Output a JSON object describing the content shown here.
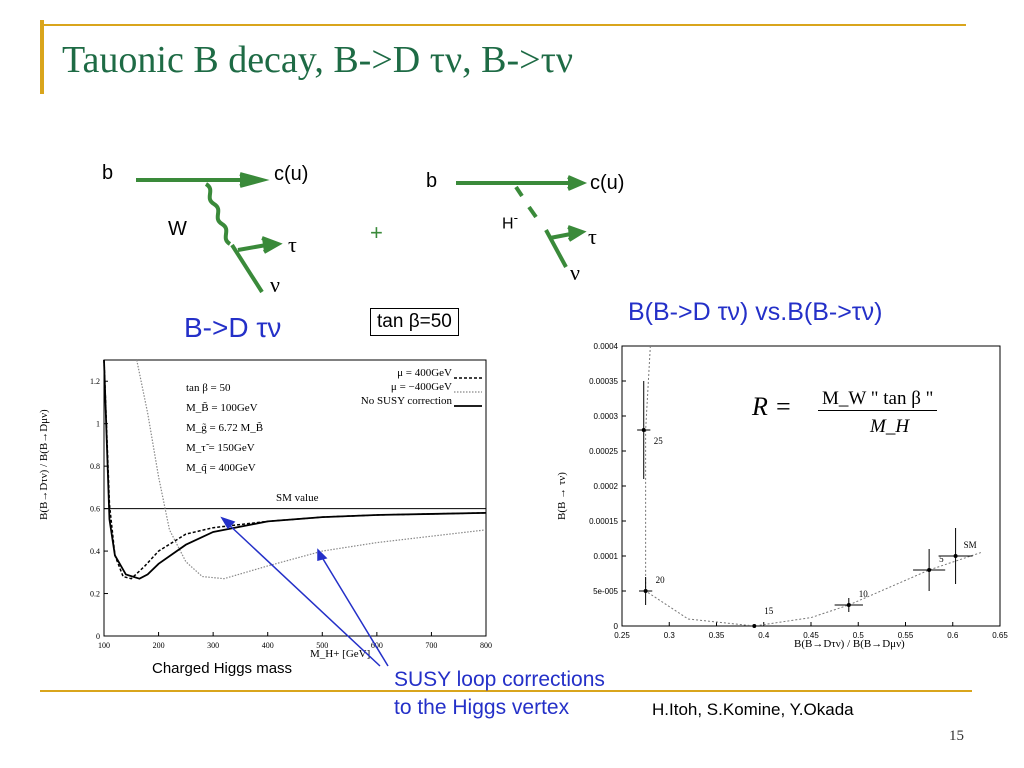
{
  "title": "Tauonic B decay, B->D τν, B->τν",
  "diagram_left": {
    "b": "b",
    "c": "c(u)",
    "w": "W",
    "tau": "τ",
    "nu": "ν"
  },
  "plus": "+",
  "diagram_right": {
    "b": "b",
    "c": "c(u)",
    "h": "H",
    "h_sup": "-",
    "tau": "τ",
    "nu": "ν"
  },
  "left_heading": "B->D τν",
  "tan_box": "tan β=50",
  "right_heading": "B(B->D τν)  vs.B(B->τν)",
  "formula": {
    "lhs": "R =",
    "num": "M_W  \" tan β \"",
    "den": "M_H"
  },
  "left_chart": {
    "params": [
      "tan β = 50",
      "M_B̃ = 100GeV",
      "M_g̃ = 6.72 M_B̃",
      "M_τ̃ = 150GeV",
      "M_q̃ = 400GeV"
    ],
    "legend": [
      "μ = 400GeV",
      "μ = −400GeV",
      "No SUSY correction"
    ],
    "sm_label": "SM value",
    "ylabel": "B(B→Dτν) / B(B→Dμν)",
    "xlabel": "M_H+ [GeV]",
    "xticks": [
      "100",
      "200",
      "300",
      "400",
      "500",
      "600",
      "700",
      "800"
    ],
    "yticks": [
      "0",
      "0.2",
      "0.4",
      "0.6",
      "0.8",
      "1",
      "1.2"
    ]
  },
  "right_chart": {
    "ylabel": "B(B → τν)",
    "xlabel": "B(B→Dτν) / B(B→Dμν)",
    "xticks": [
      "0.25",
      "0.3",
      "0.35",
      "0.4",
      "0.45",
      "0.5",
      "0.55",
      "0.6",
      "0.65"
    ],
    "yticks": [
      "0",
      "5e-005",
      "0.0001",
      "0.00015",
      "0.0002",
      "0.00025",
      "0.0003",
      "0.00035",
      "0.0004"
    ],
    "points": [
      "25",
      "20",
      "15",
      "10",
      "5",
      "SM"
    ]
  },
  "caption_left": "Charged Higgs mass",
  "caption_susy_1": "SUSY loop corrections",
  "caption_susy_2": "to the Higgs vertex",
  "authors": "H.Itoh, S.Komine, Y.Okada",
  "page_number": "15",
  "colors": {
    "title": "#1e6b45",
    "rule": "#d9a51c",
    "accent_blue": "#2430c8",
    "line_green": "#3a8a3a"
  },
  "chart_data": [
    {
      "type": "line",
      "xlabel": "M_H+ [GeV]",
      "ylabel": "B(B→Dτν)/B(B→Dμν)",
      "xlim": [
        100,
        800
      ],
      "ylim": [
        0,
        1.3
      ],
      "series": [
        {
          "name": "μ = 400GeV",
          "x": [
            100,
            110,
            120,
            135,
            150,
            175,
            200,
            250,
            300,
            400,
            500,
            600,
            700,
            800
          ],
          "values": [
            1.3,
            0.62,
            0.38,
            0.28,
            0.27,
            0.33,
            0.4,
            0.48,
            0.51,
            0.54,
            0.56,
            0.57,
            0.575,
            0.58
          ]
        },
        {
          "name": "μ = −400GeV",
          "x": [
            160,
            180,
            200,
            220,
            250,
            280,
            320,
            400,
            500,
            600,
            700,
            800
          ],
          "values": [
            1.3,
            1.05,
            0.75,
            0.5,
            0.35,
            0.28,
            0.27,
            0.33,
            0.4,
            0.44,
            0.47,
            0.5
          ]
        },
        {
          "name": "No SUSY correction",
          "x": [
            100,
            110,
            120,
            140,
            165,
            180,
            200,
            250,
            300,
            400,
            500,
            600,
            700,
            800
          ],
          "values": [
            1.3,
            0.55,
            0.38,
            0.29,
            0.27,
            0.29,
            0.34,
            0.43,
            0.49,
            0.54,
            0.56,
            0.57,
            0.575,
            0.58
          ]
        }
      ],
      "sm_value": 0.6
    },
    {
      "type": "scatter",
      "xlabel": "B(B→Dτν)/B(B→Dμν)",
      "ylabel": "B(B → τν)",
      "xlim": [
        0.25,
        0.65
      ],
      "ylim": [
        0,
        0.0004
      ],
      "points": [
        {
          "label": "25",
          "x": 0.273,
          "y": 0.00028
        },
        {
          "label": "20",
          "x": 0.275,
          "y": 5e-05
        },
        {
          "label": "15",
          "x": 0.39,
          "y": 0.0
        },
        {
          "label": "10",
          "x": 0.49,
          "y": 3e-05
        },
        {
          "label": "5",
          "x": 0.575,
          "y": 8e-05
        },
        {
          "label": "SM",
          "x": 0.603,
          "y": 0.0001
        }
      ]
    }
  ]
}
